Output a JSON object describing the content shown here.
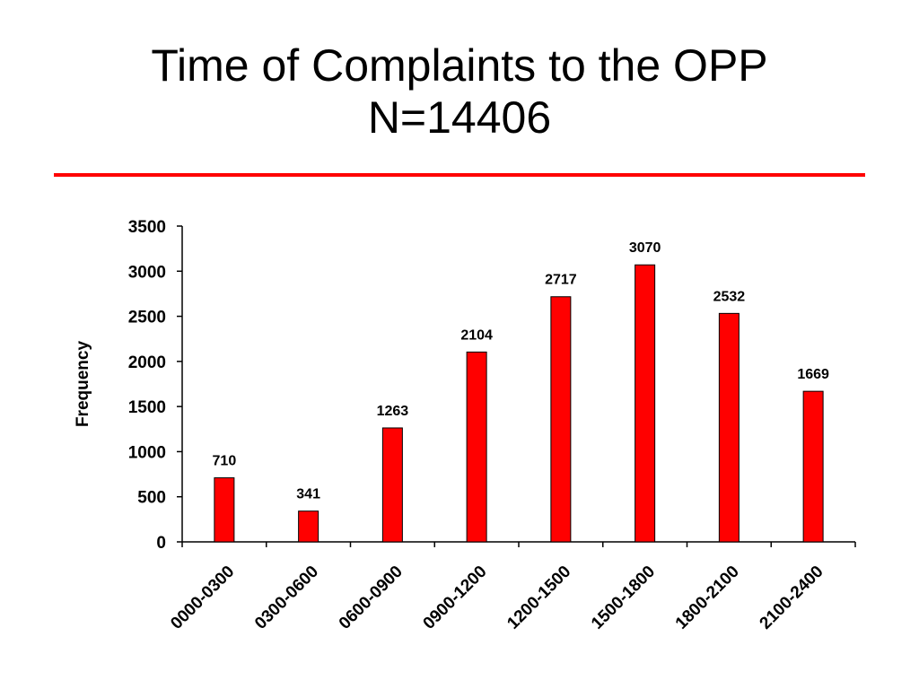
{
  "slide": {
    "title_line1": "Time of Complaints to the OPP",
    "title_line2": "N=14406",
    "rule_color": "#ff0000"
  },
  "chart_data": {
    "type": "bar",
    "title": "",
    "xlabel": "",
    "ylabel": "Frequency",
    "categories": [
      "0000-0300",
      "0300-0600",
      "0600-0900",
      "0900-1200",
      "1200-1500",
      "1500-1800",
      "1800-2100",
      "2100-2400"
    ],
    "values": [
      710,
      341,
      1263,
      2104,
      2717,
      3070,
      2532,
      1669
    ],
    "ylim": [
      0,
      3500
    ],
    "yticks": [
      0,
      500,
      1000,
      1500,
      2000,
      2500,
      3000,
      3500
    ],
    "data_labels": true,
    "bar_color": "#ff0000",
    "bar_edge_color": "#000000",
    "grid": false,
    "legend": "none"
  }
}
